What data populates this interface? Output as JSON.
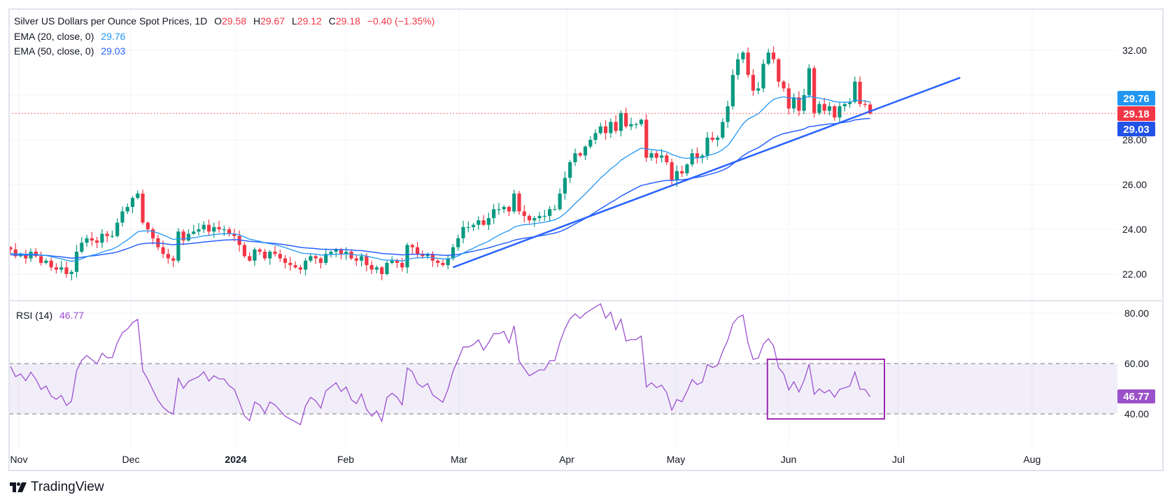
{
  "header": {
    "title": "Silver US Dollars per Ounce Spot Prices, 1D",
    "o_label": "O",
    "open": "29.58",
    "h_label": "H",
    "high": "29.67",
    "l_label": "L",
    "low": "29.12",
    "c_label": "C",
    "close": "29.18",
    "change": "−0.40 (−1.35%)"
  },
  "indicators": {
    "ema20": {
      "label": "EMA (20, close, 0)",
      "value": "29.76"
    },
    "ema50": {
      "label": "EMA (50, close, 0)",
      "value": "29.03"
    },
    "rsi": {
      "label": "RSI (14)",
      "value": "46.77"
    }
  },
  "price_axis": {
    "ticks": [
      "32.00",
      "28.00",
      "26.00",
      "24.00",
      "22.00"
    ]
  },
  "rsi_axis": {
    "ticks": [
      "80.00",
      "60.00",
      "40.00"
    ]
  },
  "time_axis": {
    "labels": [
      "Nov",
      "Dec",
      "2024",
      "Feb",
      "Mar",
      "Apr",
      "May",
      "Jun",
      "Jul",
      "Aug"
    ]
  },
  "brand": "TradingView",
  "colors": {
    "up": "#089981",
    "down": "#F23645",
    "ema20": "#2196F3",
    "ema50": "#2962FF",
    "trendline": "#2962FF",
    "rsi": "#9C4FD1",
    "rsi_badge": "#9B51C9",
    "ema50_badge": "#2253E8"
  },
  "chart_data": {
    "type": "candlestick",
    "title": "Silver US Dollars per Ounce Spot Prices, 1D",
    "ylim": [
      21.5,
      33
    ],
    "rsi_ylim": [
      30,
      85
    ],
    "rsi_levels": [
      40,
      60
    ],
    "closes": [
      23.1,
      22.8,
      22.9,
      22.7,
      23.0,
      22.8,
      22.5,
      22.6,
      22.3,
      22.2,
      22.3,
      22.0,
      22.1,
      23.0,
      23.4,
      23.6,
      23.5,
      23.4,
      23.8,
      23.7,
      23.7,
      24.3,
      24.8,
      25.0,
      25.4,
      25.6,
      24.3,
      24.0,
      23.6,
      23.2,
      22.9,
      22.7,
      22.6,
      23.9,
      23.5,
      23.8,
      23.9,
      24.0,
      24.2,
      23.9,
      24.1,
      24.0,
      24.0,
      23.8,
      23.7,
      23.3,
      22.8,
      22.6,
      23.1,
      23.0,
      22.7,
      23.0,
      22.9,
      22.7,
      22.5,
      22.4,
      22.3,
      22.2,
      22.6,
      22.8,
      22.7,
      22.5,
      22.9,
      23.0,
      23.1,
      22.9,
      23.0,
      22.7,
      22.6,
      22.8,
      22.4,
      22.2,
      22.3,
      22.0,
      22.5,
      22.6,
      22.5,
      22.3,
      23.3,
      23.2,
      22.9,
      22.8,
      22.9,
      22.6,
      22.5,
      22.4,
      22.7,
      23.2,
      23.6,
      24.1,
      24.1,
      24.2,
      24.4,
      24.2,
      24.5,
      24.9,
      24.9,
      25.0,
      24.8,
      25.6,
      24.8,
      24.6,
      24.4,
      24.5,
      24.6,
      24.6,
      24.9,
      24.9,
      25.6,
      26.3,
      27.0,
      27.4,
      27.3,
      27.7,
      28.0,
      28.3,
      28.6,
      28.3,
      28.8,
      28.4,
      29.2,
      28.6,
      28.7,
      28.7,
      28.9,
      27.2,
      27.4,
      27.2,
      27.3,
      27.0,
      26.2,
      26.6,
      26.5,
      26.9,
      27.4,
      27.2,
      27.3,
      28.1,
      28.0,
      28.1,
      28.8,
      29.5,
      30.9,
      31.6,
      31.9,
      30.9,
      30.2,
      30.3,
      31.4,
      31.9,
      31.6,
      30.6,
      30.3,
      29.4,
      29.9,
      29.3,
      30.0,
      31.2,
      29.2,
      29.6,
      29.3,
      29.5,
      29.0,
      29.5,
      29.6,
      29.7,
      30.6,
      29.6,
      29.58,
      29.18
    ],
    "last_candle": {
      "open": 29.58,
      "high": 29.67,
      "low": 29.12,
      "close": 29.18
    },
    "ema_seed": {
      "ema20": 22.9,
      "ema50": 22.85
    },
    "trendline": {
      "from": {
        "bar": 87,
        "price": 22.3
      },
      "to": {
        "bar": 186.7,
        "price": 30.78
      }
    },
    "rsi_highlight_box": {
      "from_bar": 148.8,
      "to_bar": 171.8,
      "rsi_top": 61.7,
      "rsi_bottom": 38
    }
  }
}
